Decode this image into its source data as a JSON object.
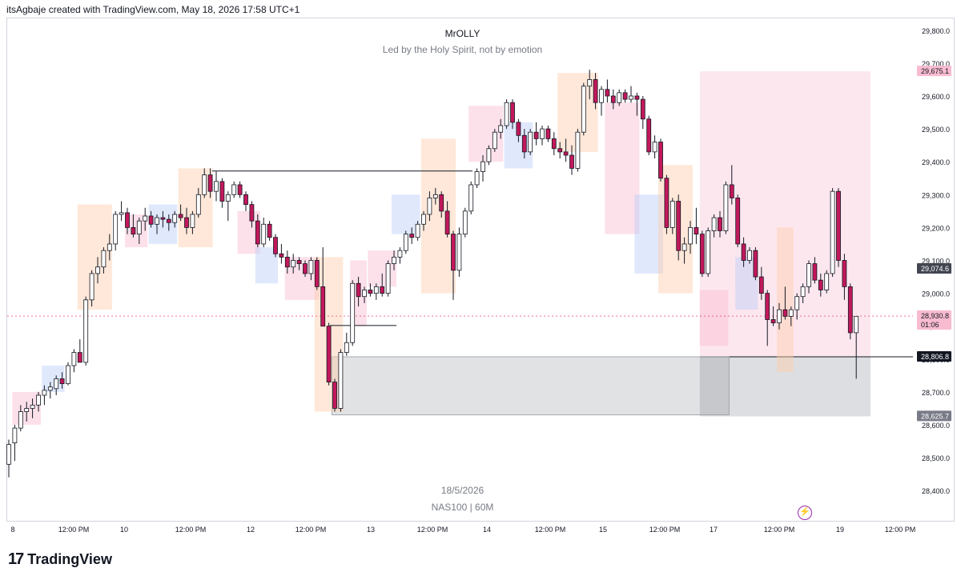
{
  "header": {
    "credit": "itsAgbaje created with TradingView.com, May 18, 2026 17:58 UTC+1"
  },
  "chart_header": {
    "author": "MrOLLY",
    "tagline": "Led by the Holy Spirit, not by emotion"
  },
  "watermark": {
    "date": "18/5/2026",
    "symbol": "NAS100 | 60M"
  },
  "brand": {
    "name": "TradingView"
  },
  "colors": {
    "up": "#ffffff",
    "down": "#c2185b",
    "wick": "#131722",
    "price_label": "#f8bbd0"
  },
  "chart_data": {
    "type": "candlestick",
    "symbol": "NAS100",
    "interval": "60M",
    "y_axis": {
      "ticks": [
        "29,800.0",
        "29,700.0",
        "29,600.0",
        "29,500.0",
        "29,400.0",
        "29,300.0",
        "29,200.0",
        "29,100.0",
        "29,000.0",
        "28,900.0",
        "28,800.0",
        "28,700.0",
        "28,600.0",
        "28,500.0",
        "28,400.0"
      ],
      "range": [
        28340,
        29830
      ]
    },
    "x_axis": {
      "ticks": [
        "8",
        "12:00 PM",
        "10",
        "12:00 PM",
        "12",
        "12:00 PM",
        "13",
        "12:00 PM",
        "14",
        "12:00 PM",
        "15",
        "12:00 PM",
        "17",
        "12:00 PM",
        "19",
        "12:00 PM"
      ]
    },
    "price_labels": [
      {
        "value": "29,675.1",
        "kind": "target"
      },
      {
        "value": "29,074.6",
        "kind": "level"
      },
      {
        "value": "28,930.8",
        "kind": "last",
        "countdown": "01:06"
      },
      {
        "value": "28,806.8",
        "kind": "entry"
      },
      {
        "value": "28,625.7",
        "kind": "stop"
      }
    ],
    "horizontal_lines": [
      {
        "price": 29372,
        "from": 265,
        "to": 590
      },
      {
        "price": 28902,
        "from": 412,
        "to": 495
      }
    ],
    "candles": [
      {
        "o": 28480,
        "h": 28555,
        "l": 28440,
        "c": 28540
      },
      {
        "o": 28545,
        "h": 28600,
        "l": 28490,
        "c": 28590
      },
      {
        "o": 28590,
        "h": 28660,
        "l": 28580,
        "c": 28640
      },
      {
        "o": 28640,
        "h": 28670,
        "l": 28610,
        "c": 28650
      },
      {
        "o": 28650,
        "h": 28680,
        "l": 28620,
        "c": 28660
      },
      {
        "o": 28660,
        "h": 28700,
        "l": 28640,
        "c": 28690
      },
      {
        "o": 28690,
        "h": 28720,
        "l": 28660,
        "c": 28705
      },
      {
        "o": 28705,
        "h": 28730,
        "l": 28680,
        "c": 28715
      },
      {
        "o": 28710,
        "h": 28750,
        "l": 28690,
        "c": 28740
      },
      {
        "o": 28740,
        "h": 28760,
        "l": 28710,
        "c": 28725
      },
      {
        "o": 28725,
        "h": 28790,
        "l": 28720,
        "c": 28780
      },
      {
        "o": 28780,
        "h": 28830,
        "l": 28760,
        "c": 28820
      },
      {
        "o": 28820,
        "h": 28860,
        "l": 28790,
        "c": 28790
      },
      {
        "o": 28790,
        "h": 28990,
        "l": 28780,
        "c": 28980
      },
      {
        "o": 28980,
        "h": 29070,
        "l": 28960,
        "c": 29060
      },
      {
        "o": 29060,
        "h": 29110,
        "l": 29030,
        "c": 29080
      },
      {
        "o": 29080,
        "h": 29140,
        "l": 29060,
        "c": 29130
      },
      {
        "o": 29130,
        "h": 29180,
        "l": 29100,
        "c": 29150
      },
      {
        "o": 29150,
        "h": 29250,
        "l": 29130,
        "c": 29240
      },
      {
        "o": 29240,
        "h": 29280,
        "l": 29220,
        "c": 29245
      },
      {
        "o": 29245,
        "h": 29260,
        "l": 29180,
        "c": 29200
      },
      {
        "o": 29200,
        "h": 29240,
        "l": 29170,
        "c": 29180
      },
      {
        "o": 29180,
        "h": 29230,
        "l": 29150,
        "c": 29220
      },
      {
        "o": 29220,
        "h": 29260,
        "l": 29190,
        "c": 29235
      },
      {
        "o": 29235,
        "h": 29250,
        "l": 29200,
        "c": 29210
      },
      {
        "o": 29210,
        "h": 29240,
        "l": 29180,
        "c": 29230
      },
      {
        "o": 29230,
        "h": 29250,
        "l": 29200,
        "c": 29225
      },
      {
        "o": 29225,
        "h": 29240,
        "l": 29190,
        "c": 29215
      },
      {
        "o": 29215,
        "h": 29250,
        "l": 29200,
        "c": 29240
      },
      {
        "o": 29240,
        "h": 29270,
        "l": 29220,
        "c": 29230
      },
      {
        "o": 29230,
        "h": 29260,
        "l": 29180,
        "c": 29200
      },
      {
        "o": 29200,
        "h": 29250,
        "l": 29180,
        "c": 29240
      },
      {
        "o": 29240,
        "h": 29320,
        "l": 29230,
        "c": 29300
      },
      {
        "o": 29300,
        "h": 29380,
        "l": 29290,
        "c": 29360
      },
      {
        "o": 29360,
        "h": 29380,
        "l": 29290,
        "c": 29310
      },
      {
        "o": 29310,
        "h": 29370,
        "l": 29280,
        "c": 29340
      },
      {
        "o": 29340,
        "h": 29350,
        "l": 29260,
        "c": 29280
      },
      {
        "o": 29280,
        "h": 29310,
        "l": 29220,
        "c": 29300
      },
      {
        "o": 29300,
        "h": 29340,
        "l": 29290,
        "c": 29330
      },
      {
        "o": 29330,
        "h": 29340,
        "l": 29290,
        "c": 29300
      },
      {
        "o": 29300,
        "h": 29310,
        "l": 29250,
        "c": 29270
      },
      {
        "o": 29270,
        "h": 29280,
        "l": 29200,
        "c": 29220
      },
      {
        "o": 29220,
        "h": 29240,
        "l": 29140,
        "c": 29150
      },
      {
        "o": 29150,
        "h": 29230,
        "l": 29140,
        "c": 29210
      },
      {
        "o": 29210,
        "h": 29220,
        "l": 29160,
        "c": 29170
      },
      {
        "o": 29170,
        "h": 29180,
        "l": 29110,
        "c": 29120
      },
      {
        "o": 29120,
        "h": 29150,
        "l": 29090,
        "c": 29110
      },
      {
        "o": 29110,
        "h": 29130,
        "l": 29060,
        "c": 29080
      },
      {
        "o": 29080,
        "h": 29120,
        "l": 29060,
        "c": 29100
      },
      {
        "o": 29100,
        "h": 29110,
        "l": 29070,
        "c": 29090
      },
      {
        "o": 29090,
        "h": 29100,
        "l": 29050,
        "c": 29060
      },
      {
        "o": 29060,
        "h": 29110,
        "l": 29040,
        "c": 29100
      },
      {
        "o": 29100,
        "h": 29110,
        "l": 29010,
        "c": 29020
      },
      {
        "o": 29020,
        "h": 29140,
        "l": 28900,
        "c": 28900
      },
      {
        "o": 28900,
        "h": 28910,
        "l": 28720,
        "c": 28730
      },
      {
        "o": 28730,
        "h": 28740,
        "l": 28640,
        "c": 28650
      },
      {
        "o": 28650,
        "h": 28830,
        "l": 28640,
        "c": 28820
      },
      {
        "o": 28820,
        "h": 28880,
        "l": 28810,
        "c": 28850
      },
      {
        "o": 28850,
        "h": 29040,
        "l": 28840,
        "c": 29030
      },
      {
        "o": 29030,
        "h": 29050,
        "l": 28960,
        "c": 28990
      },
      {
        "o": 28990,
        "h": 29020,
        "l": 28970,
        "c": 29010
      },
      {
        "o": 29010,
        "h": 29030,
        "l": 28990,
        "c": 29000
      },
      {
        "o": 29000,
        "h": 29030,
        "l": 28980,
        "c": 29020
      },
      {
        "o": 29020,
        "h": 29060,
        "l": 28990,
        "c": 29000
      },
      {
        "o": 29000,
        "h": 29100,
        "l": 28990,
        "c": 29090
      },
      {
        "o": 29090,
        "h": 29130,
        "l": 29070,
        "c": 29110
      },
      {
        "o": 29110,
        "h": 29140,
        "l": 29090,
        "c": 29130
      },
      {
        "o": 29130,
        "h": 29190,
        "l": 29120,
        "c": 29180
      },
      {
        "o": 29180,
        "h": 29200,
        "l": 29150,
        "c": 29170
      },
      {
        "o": 29170,
        "h": 29220,
        "l": 29160,
        "c": 29210
      },
      {
        "o": 29210,
        "h": 29250,
        "l": 29190,
        "c": 29240
      },
      {
        "o": 29240,
        "h": 29310,
        "l": 29220,
        "c": 29290
      },
      {
        "o": 29290,
        "h": 29320,
        "l": 29270,
        "c": 29300
      },
      {
        "o": 29300,
        "h": 29310,
        "l": 29230,
        "c": 29250
      },
      {
        "o": 29250,
        "h": 29280,
        "l": 29170,
        "c": 29180
      },
      {
        "o": 29180,
        "h": 29190,
        "l": 28980,
        "c": 29070
      },
      {
        "o": 29070,
        "h": 29200,
        "l": 29050,
        "c": 29180
      },
      {
        "o": 29180,
        "h": 29260,
        "l": 29170,
        "c": 29250
      },
      {
        "o": 29250,
        "h": 29340,
        "l": 29240,
        "c": 29330
      },
      {
        "o": 29330,
        "h": 29380,
        "l": 29320,
        "c": 29370
      },
      {
        "o": 29370,
        "h": 29420,
        "l": 29340,
        "c": 29400
      },
      {
        "o": 29400,
        "h": 29450,
        "l": 29390,
        "c": 29440
      },
      {
        "o": 29440,
        "h": 29500,
        "l": 29430,
        "c": 29490
      },
      {
        "o": 29490,
        "h": 29530,
        "l": 29470,
        "c": 29510
      },
      {
        "o": 29510,
        "h": 29590,
        "l": 29500,
        "c": 29580
      },
      {
        "o": 29580,
        "h": 29590,
        "l": 29500,
        "c": 29520
      },
      {
        "o": 29520,
        "h": 29530,
        "l": 29460,
        "c": 29480
      },
      {
        "o": 29480,
        "h": 29500,
        "l": 29410,
        "c": 29430
      },
      {
        "o": 29430,
        "h": 29500,
        "l": 29420,
        "c": 29490
      },
      {
        "o": 29490,
        "h": 29520,
        "l": 29450,
        "c": 29470
      },
      {
        "o": 29470,
        "h": 29510,
        "l": 29450,
        "c": 29500
      },
      {
        "o": 29500,
        "h": 29510,
        "l": 29460,
        "c": 29470
      },
      {
        "o": 29470,
        "h": 29490,
        "l": 29420,
        "c": 29440
      },
      {
        "o": 29440,
        "h": 29460,
        "l": 29410,
        "c": 29430
      },
      {
        "o": 29430,
        "h": 29470,
        "l": 29400,
        "c": 29420
      },
      {
        "o": 29420,
        "h": 29450,
        "l": 29360,
        "c": 29380
      },
      {
        "o": 29380,
        "h": 29500,
        "l": 29370,
        "c": 29490
      },
      {
        "o": 29490,
        "h": 29640,
        "l": 29480,
        "c": 29630
      },
      {
        "o": 29630,
        "h": 29680,
        "l": 29590,
        "c": 29650
      },
      {
        "o": 29650,
        "h": 29670,
        "l": 29560,
        "c": 29580
      },
      {
        "o": 29580,
        "h": 29630,
        "l": 29540,
        "c": 29620
      },
      {
        "o": 29620,
        "h": 29650,
        "l": 29580,
        "c": 29600
      },
      {
        "o": 29600,
        "h": 29620,
        "l": 29560,
        "c": 29580
      },
      {
        "o": 29580,
        "h": 29620,
        "l": 29570,
        "c": 29610
      },
      {
        "o": 29610,
        "h": 29620,
        "l": 29580,
        "c": 29590
      },
      {
        "o": 29590,
        "h": 29630,
        "l": 29580,
        "c": 29600
      },
      {
        "o": 29600,
        "h": 29610,
        "l": 29540,
        "c": 29590
      },
      {
        "o": 29590,
        "h": 29600,
        "l": 29500,
        "c": 29530
      },
      {
        "o": 29530,
        "h": 29540,
        "l": 29420,
        "c": 29430
      },
      {
        "o": 29430,
        "h": 29480,
        "l": 29410,
        "c": 29460
      },
      {
        "o": 29460,
        "h": 29470,
        "l": 29340,
        "c": 29350
      },
      {
        "o": 29350,
        "h": 29360,
        "l": 29180,
        "c": 29200
      },
      {
        "o": 29200,
        "h": 29290,
        "l": 29180,
        "c": 29280
      },
      {
        "o": 29280,
        "h": 29300,
        "l": 29100,
        "c": 29130
      },
      {
        "o": 29130,
        "h": 29170,
        "l": 29090,
        "c": 29150
      },
      {
        "o": 29150,
        "h": 29220,
        "l": 29120,
        "c": 29200
      },
      {
        "o": 29200,
        "h": 29260,
        "l": 29150,
        "c": 29180
      },
      {
        "o": 29180,
        "h": 29190,
        "l": 29050,
        "c": 29060
      },
      {
        "o": 29060,
        "h": 29200,
        "l": 29050,
        "c": 29190
      },
      {
        "o": 29190,
        "h": 29240,
        "l": 29170,
        "c": 29230
      },
      {
        "o": 29230,
        "h": 29250,
        "l": 29170,
        "c": 29190
      },
      {
        "o": 29190,
        "h": 29340,
        "l": 29180,
        "c": 29330
      },
      {
        "o": 29330,
        "h": 29390,
        "l": 29270,
        "c": 29290
      },
      {
        "o": 29290,
        "h": 29300,
        "l": 29140,
        "c": 29150
      },
      {
        "o": 29150,
        "h": 29170,
        "l": 29080,
        "c": 29100
      },
      {
        "o": 29100,
        "h": 29140,
        "l": 29090,
        "c": 29130
      },
      {
        "o": 29130,
        "h": 29140,
        "l": 29040,
        "c": 29050
      },
      {
        "o": 29050,
        "h": 29080,
        "l": 28980,
        "c": 29000
      },
      {
        "o": 29000,
        "h": 29010,
        "l": 28840,
        "c": 28920
      },
      {
        "o": 28920,
        "h": 28960,
        "l": 28900,
        "c": 28910
      },
      {
        "o": 28910,
        "h": 28970,
        "l": 28890,
        "c": 28950
      },
      {
        "o": 28950,
        "h": 29020,
        "l": 28920,
        "c": 28930
      },
      {
        "o": 28930,
        "h": 28960,
        "l": 28900,
        "c": 28950
      },
      {
        "o": 28950,
        "h": 29000,
        "l": 28920,
        "c": 28990
      },
      {
        "o": 28990,
        "h": 29030,
        "l": 28970,
        "c": 29020
      },
      {
        "o": 29020,
        "h": 29100,
        "l": 29000,
        "c": 29090
      },
      {
        "o": 29090,
        "h": 29110,
        "l": 29030,
        "c": 29040
      },
      {
        "o": 29040,
        "h": 29060,
        "l": 28990,
        "c": 29010
      },
      {
        "o": 29010,
        "h": 29070,
        "l": 29000,
        "c": 29060
      },
      {
        "o": 29060,
        "h": 29320,
        "l": 29050,
        "c": 29310
      },
      {
        "o": 29310,
        "h": 29320,
        "l": 29080,
        "c": 29100
      },
      {
        "o": 29100,
        "h": 29120,
        "l": 28980,
        "c": 29020
      },
      {
        "o": 29020,
        "h": 29030,
        "l": 28860,
        "c": 28880
      },
      {
        "o": 28880,
        "h": 28930,
        "l": 28740,
        "c": 28930
      }
    ],
    "boxes": [
      {
        "c0": 1,
        "c1": 5,
        "hi": 28700,
        "lo": 28600,
        "color": "pink"
      },
      {
        "c0": 6,
        "c1": 9,
        "hi": 28780,
        "lo": 28700,
        "color": "blue"
      },
      {
        "c0": 12,
        "c1": 17,
        "hi": 29270,
        "lo": 28950,
        "color": "orange"
      },
      {
        "c0": 20,
        "c1": 23,
        "hi": 29240,
        "lo": 29140,
        "color": "pink"
      },
      {
        "c0": 24,
        "c1": 28,
        "hi": 29270,
        "lo": 29150,
        "color": "blue"
      },
      {
        "c0": 29,
        "c1": 34,
        "hi": 29380,
        "lo": 29140,
        "color": "orange"
      },
      {
        "c0": 39,
        "c1": 42,
        "hi": 29250,
        "lo": 29120,
        "color": "pink"
      },
      {
        "c0": 42,
        "c1": 45,
        "hi": 29140,
        "lo": 29030,
        "color": "blue"
      },
      {
        "c0": 47,
        "c1": 52,
        "hi": 29110,
        "lo": 28980,
        "color": "pink"
      },
      {
        "c0": 52,
        "c1": 56,
        "hi": 29110,
        "lo": 28640,
        "color": "orange"
      },
      {
        "c0": 58,
        "c1": 60,
        "hi": 29100,
        "lo": 28900,
        "color": "pink"
      },
      {
        "c0": 61,
        "c1": 65,
        "hi": 29130,
        "lo": 29020,
        "color": "pink"
      },
      {
        "c0": 65,
        "c1": 69,
        "hi": 29300,
        "lo": 29180,
        "color": "blue"
      },
      {
        "c0": 70,
        "c1": 75,
        "hi": 29470,
        "lo": 29000,
        "color": "orange"
      },
      {
        "c0": 78,
        "c1": 83,
        "hi": 29570,
        "lo": 29400,
        "color": "pink"
      },
      {
        "c0": 84,
        "c1": 88,
        "hi": 29520,
        "lo": 29380,
        "color": "blue"
      },
      {
        "c0": 93,
        "c1": 99,
        "hi": 29670,
        "lo": 29430,
        "color": "orange"
      },
      {
        "c0": 101,
        "c1": 106,
        "hi": 29580,
        "lo": 29180,
        "color": "pink"
      },
      {
        "c0": 106,
        "c1": 110,
        "hi": 29300,
        "lo": 29060,
        "color": "blue"
      },
      {
        "c0": 110,
        "c1": 115,
        "hi": 29390,
        "lo": 29000,
        "color": "orange"
      },
      {
        "c0": 117,
        "c1": 121,
        "hi": 29010,
        "lo": 28840,
        "color": "pink"
      },
      {
        "c0": 123,
        "c1": 126,
        "hi": 29110,
        "lo": 28950,
        "color": "blue"
      },
      {
        "c0": 130,
        "c1": 132,
        "hi": 29200,
        "lo": 28760,
        "color": "orange"
      }
    ],
    "position_tool": {
      "entry": 28806.8,
      "target": 29675.1,
      "stop": 28625.7,
      "from_candle": 117
    },
    "demand_zone": {
      "hi": 28806.8,
      "lo": 28630,
      "from_candle": 54,
      "to_candle": 121
    }
  }
}
